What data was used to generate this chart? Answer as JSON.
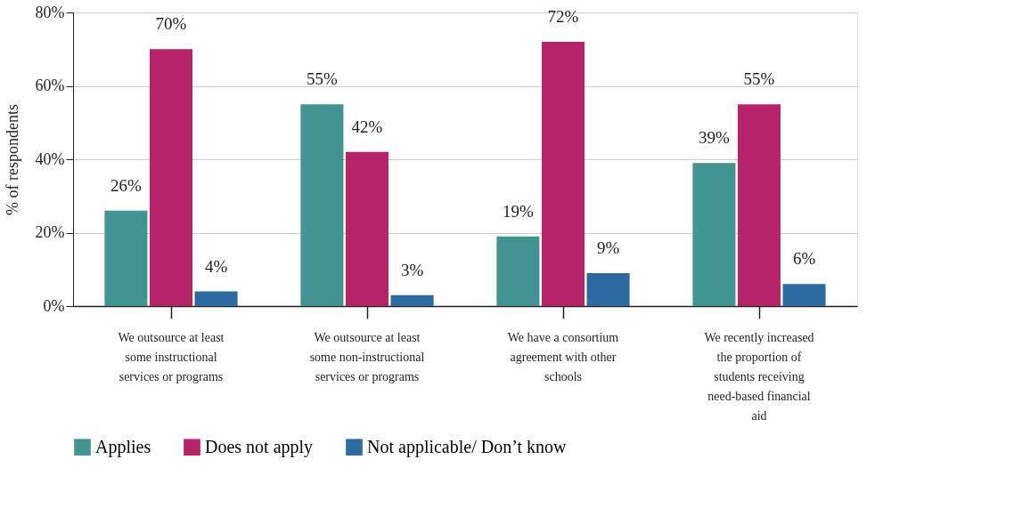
{
  "chart_data": {
    "type": "bar",
    "ylabel": "% of respondents",
    "categories": [
      "We outsource at least some instructional services or programs",
      "We outsource at least some non-instructional services or programs",
      "We have a consortium agreement with other schools",
      "We recently increased the proportion of students receiving need-based financial aid"
    ],
    "series": [
      {
        "name": "Applies",
        "color": "#429493",
        "values": [
          26,
          55,
          19,
          39
        ],
        "value_labels": [
          "26%",
          "55%",
          "19%",
          "39%"
        ]
      },
      {
        "name": "Does not apply",
        "color": "#b8246a",
        "values": [
          70,
          42,
          72,
          55
        ],
        "value_labels": [
          "70%",
          "42%",
          "72%",
          "55%"
        ]
      },
      {
        "name": "Not applicable/ Don’t know",
        "color": "#2c6aa0",
        "values": [
          4,
          3,
          9,
          6
        ],
        "value_labels": [
          "4%",
          "3%",
          "9%",
          "6%"
        ]
      }
    ],
    "ylim": [
      0,
      80
    ],
    "yticks": [
      {
        "value": 0,
        "label": "0%"
      },
      {
        "value": 20,
        "label": "20%"
      },
      {
        "value": 40,
        "label": "40%"
      },
      {
        "value": 60,
        "label": "60%"
      },
      {
        "value": 80,
        "label": "80%"
      }
    ],
    "grid": "y",
    "legend": "bottom"
  }
}
